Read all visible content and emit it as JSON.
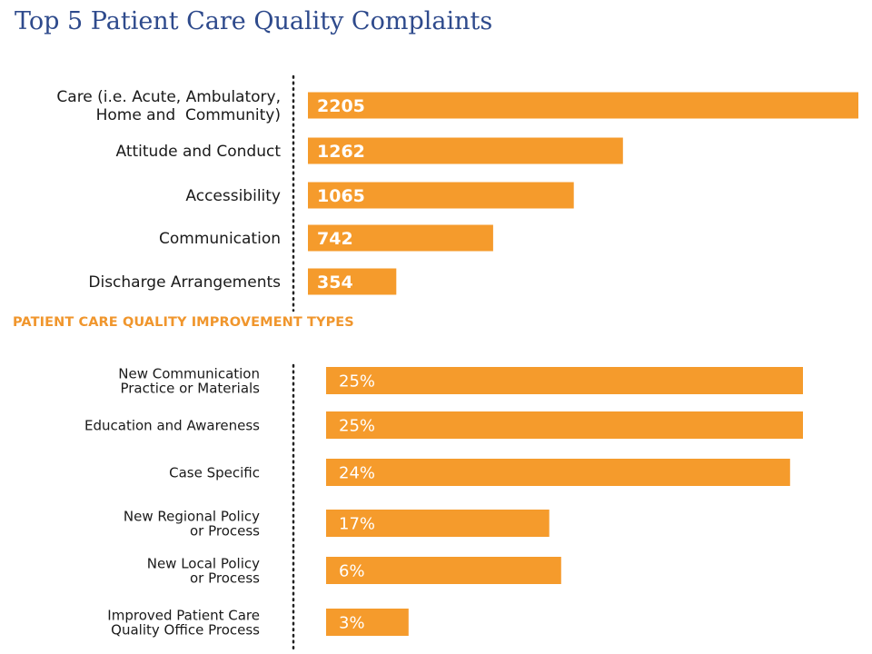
{
  "page": {
    "title": "Top 5 Patient Care Quality Complaints",
    "section_title": "PATIENT CARE QUALITY IMPROVEMENT TYPES"
  },
  "colors": {
    "bar": "#f59b2c",
    "title": "#2e4a8c",
    "section_title": "#f0962d"
  },
  "chart_data": [
    {
      "type": "bar",
      "orientation": "horizontal",
      "title": "Top 5 Patient Care Quality Complaints",
      "categories": [
        [
          "Care (i.e. Acute, Ambulatory,",
          "Home and  Community)"
        ],
        [
          "Attitude and Conduct"
        ],
        [
          "Accessibility"
        ],
        [
          "Communication"
        ],
        [
          "Discharge Arrangements"
        ]
      ],
      "values": [
        2205,
        1262,
        1065,
        742,
        354
      ],
      "value_labels": [
        "2205",
        "1262",
        "1065",
        "742",
        "354"
      ],
      "xlim": [
        0,
        2205
      ],
      "grid": false
    },
    {
      "type": "bar",
      "orientation": "horizontal",
      "title": "PATIENT CARE QUALITY IMPROVEMENT TYPES",
      "categories": [
        [
          "New Communication",
          "Practice or Materials"
        ],
        [
          "Education and Awareness"
        ],
        [
          "Case Specific"
        ],
        [
          "New Regional Policy",
          "or Process"
        ],
        [
          "New Local Policy",
          "or Process"
        ],
        [
          "Improved Patient Care",
          "Quality Office Process"
        ]
      ],
      "values": [
        25,
        25,
        24,
        17,
        6,
        3
      ],
      "value_labels": [
        "25%",
        "25%",
        "24%",
        "17%",
        "6%",
        "3%"
      ],
      "grid": false
    }
  ]
}
